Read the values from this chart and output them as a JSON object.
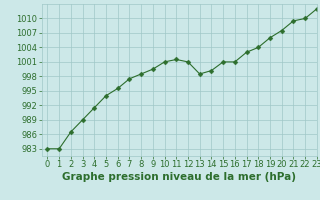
{
  "x": [
    0,
    1,
    2,
    3,
    4,
    5,
    6,
    7,
    8,
    9,
    10,
    11,
    12,
    13,
    14,
    15,
    16,
    17,
    18,
    19,
    20,
    21,
    22,
    23
  ],
  "y": [
    983,
    983,
    986.5,
    989,
    991.5,
    994,
    995.5,
    997.5,
    998.5,
    999.5,
    1001,
    1001.5,
    1001,
    998.5,
    999.2,
    1001,
    1001,
    1003,
    1004,
    1006,
    1007.5,
    1009.5,
    1010,
    1012
  ],
  "line_color": "#2d6e2d",
  "marker": "D",
  "marker_size": 2.5,
  "bg_color": "#cce8e8",
  "grid_color": "#a0c8c8",
  "title": "Graphe pression niveau de la mer (hPa)",
  "xlim": [
    -0.5,
    23
  ],
  "ylim": [
    981.5,
    1013
  ],
  "yticks": [
    983,
    986,
    989,
    992,
    995,
    998,
    1001,
    1004,
    1007,
    1010
  ],
  "xticks": [
    0,
    1,
    2,
    3,
    4,
    5,
    6,
    7,
    8,
    9,
    10,
    11,
    12,
    13,
    14,
    15,
    16,
    17,
    18,
    19,
    20,
    21,
    22,
    23
  ],
  "title_fontsize": 7.5,
  "tick_fontsize": 6,
  "title_color": "#2d6e2d",
  "tick_color": "#2d6e2d"
}
